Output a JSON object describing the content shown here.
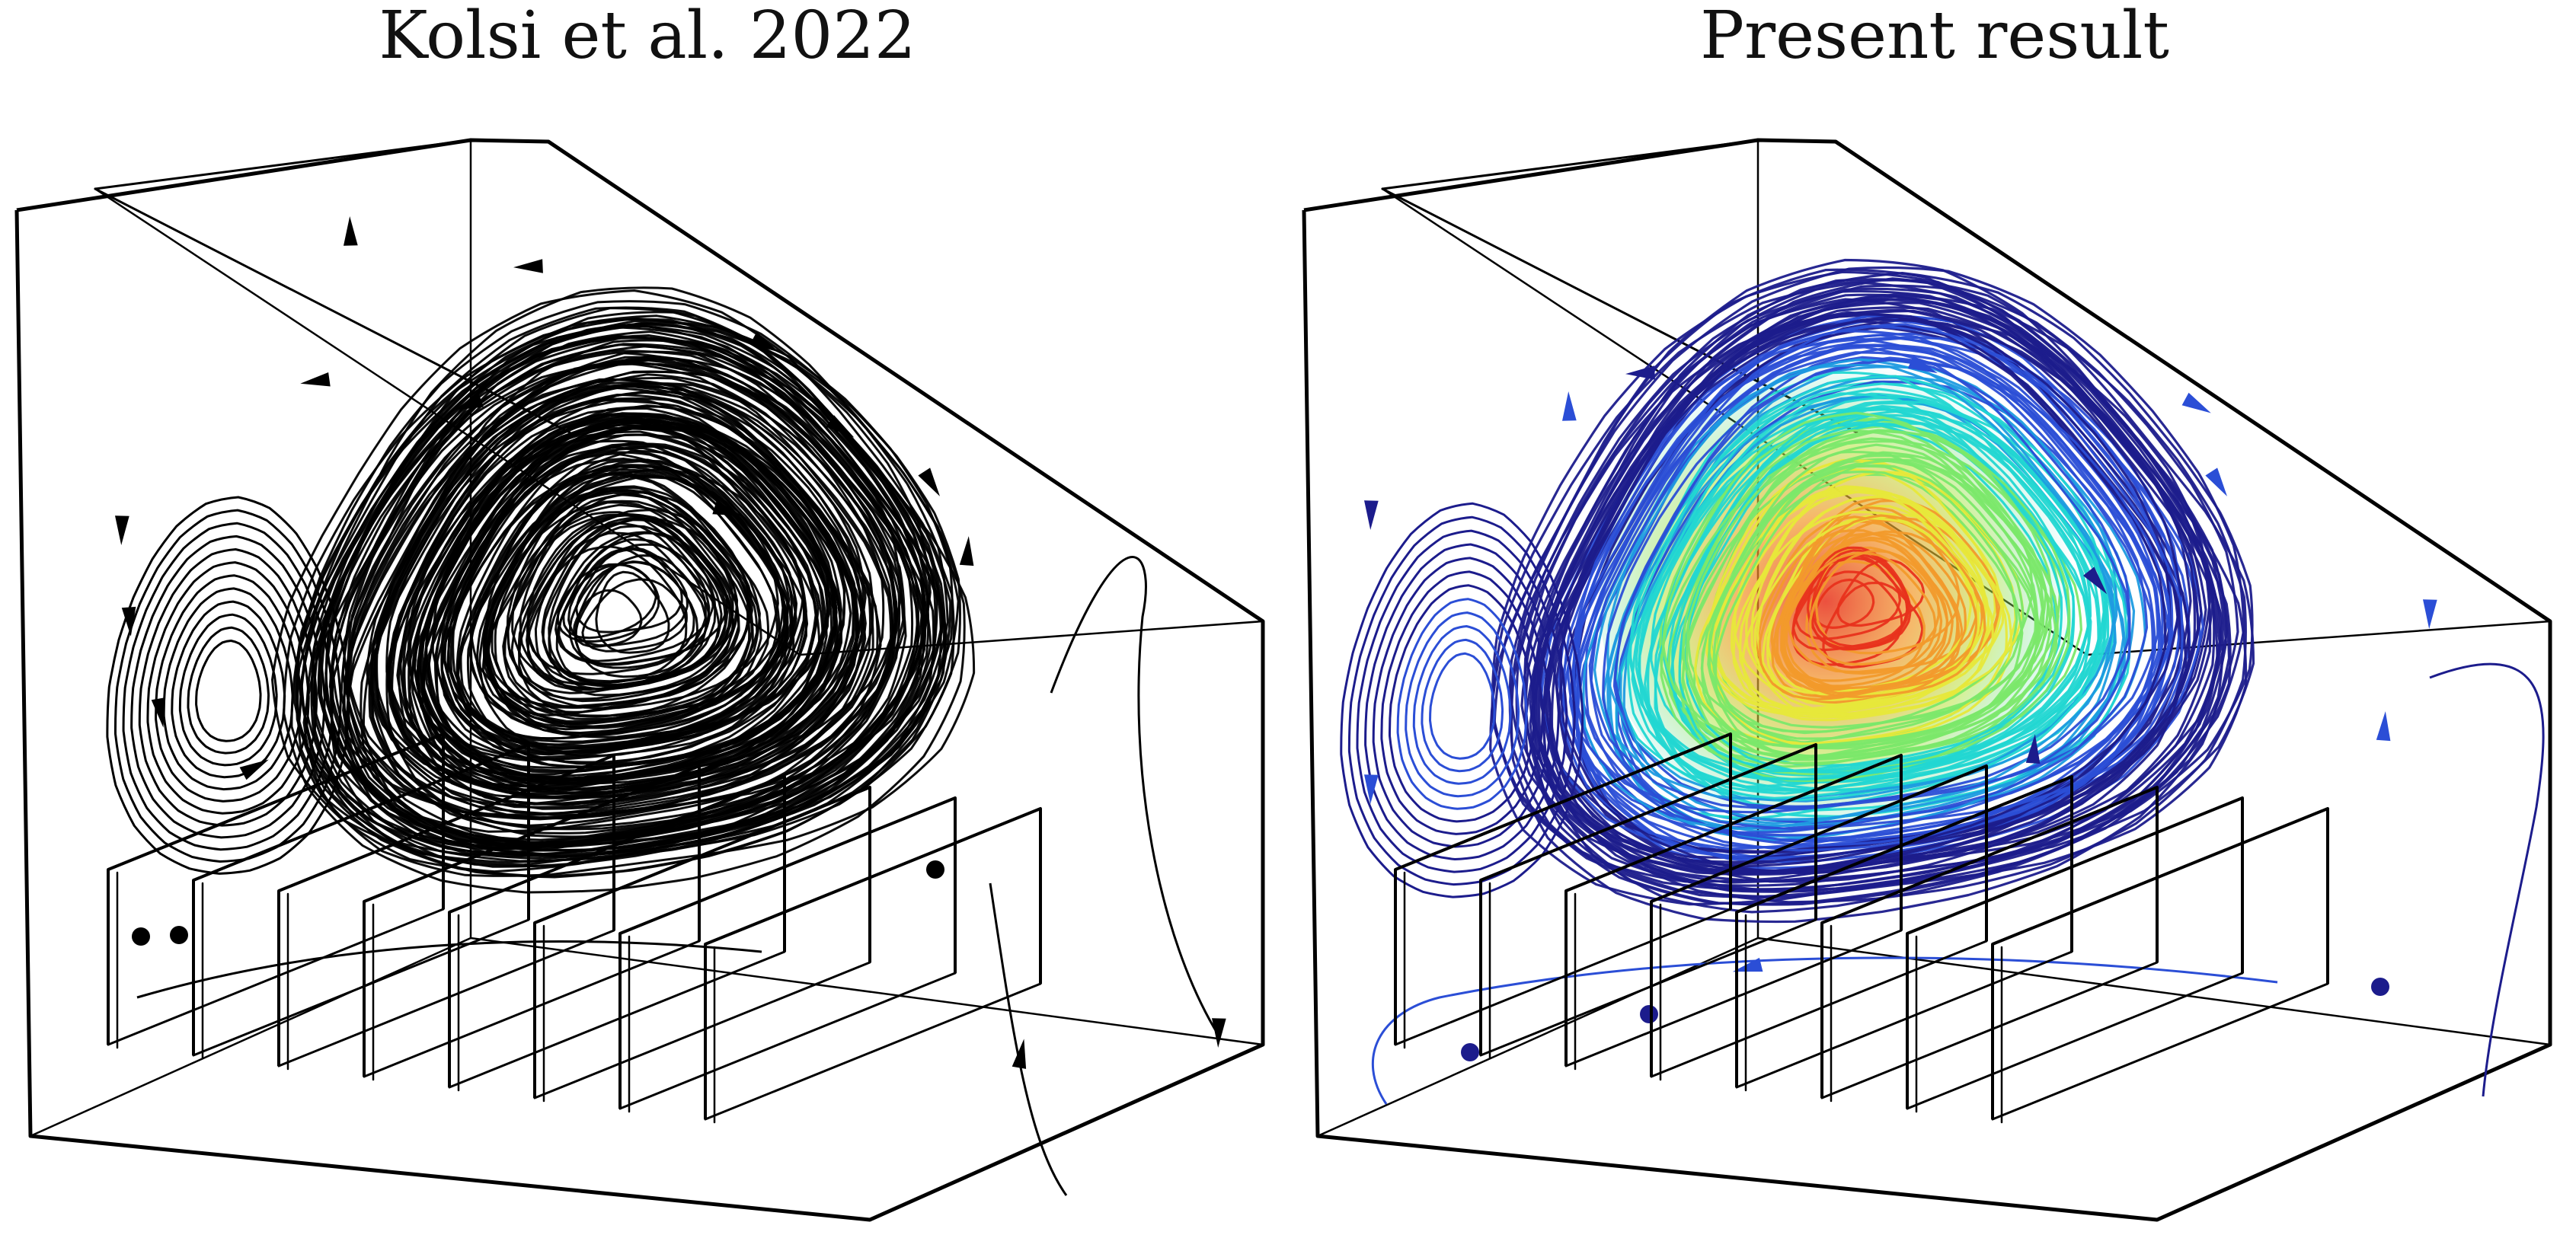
{
  "figure": {
    "panels": [
      {
        "title": "Kolsi et al. 2022",
        "style": "monochrome",
        "line_color": "#000000"
      },
      {
        "title": "Present result",
        "style": "colormap",
        "colormap": [
          "#1c1c8c",
          "#2b4ed6",
          "#1e9be0",
          "#22d7d2",
          "#7be86a",
          "#e7e83a",
          "#f29a2b",
          "#e8321c",
          "#c20f0f"
        ]
      }
    ],
    "geometry": {
      "description": "Trapezoidal cavity with inclined top wall and a row of vertical fins on the bottom",
      "fin_count": 8
    },
    "icons": [
      "arrowhead-icon",
      "seed-point-icon"
    ]
  }
}
